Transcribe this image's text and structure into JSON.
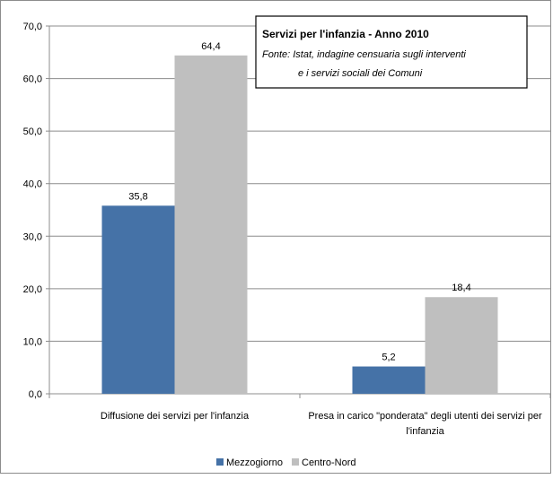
{
  "chart_data": {
    "type": "bar",
    "title": "Servizi per l'infanzia - Anno 2010",
    "source_lines": [
      "Fonte: Istat, indagine censuaria sugli interventi",
      "e i servizi sociali dei Comuni"
    ],
    "categories": [
      [
        "Diffusione dei servizi per l'infanzia"
      ],
      [
        "Presa in carico \"ponderata\"  degli utenti dei servizi per",
        "l'infanzia"
      ]
    ],
    "series": [
      {
        "name": "Mezzogiorno",
        "values": [
          35.8,
          5.2
        ],
        "labels": [
          "35,8",
          "5,2"
        ],
        "color": "#4572a7"
      },
      {
        "name": "Centro-Nord",
        "values": [
          64.4,
          18.4
        ],
        "labels": [
          "64,4",
          "18,4"
        ],
        "color": "#bfbfbf"
      }
    ],
    "ylim": [
      0,
      70
    ],
    "yticks": [
      0,
      10,
      20,
      30,
      40,
      50,
      60,
      70
    ],
    "ytick_labels": [
      "0,0",
      "10,0",
      "20,0",
      "30,0",
      "40,0",
      "50,0",
      "60,0",
      "70,0"
    ],
    "grid": true,
    "legend_position": "bottom"
  }
}
